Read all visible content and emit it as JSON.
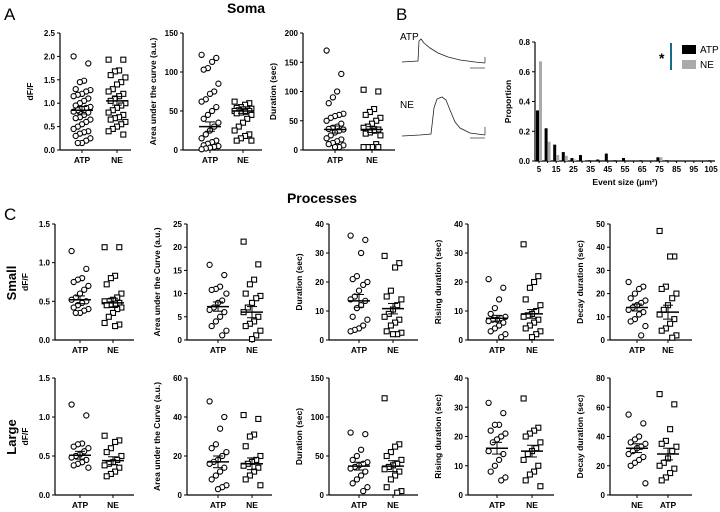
{
  "titles": {
    "soma": "Soma",
    "processes": "Processes"
  },
  "panel_letters": {
    "a": "A",
    "b": "B",
    "c": "C"
  },
  "row_labels": {
    "small": "Small",
    "large": "Large"
  },
  "traces": {
    "atp_label": "ATP",
    "ne_label": "NE"
  },
  "chart_data": [
    {
      "id": "soma-dff",
      "type": "scatter",
      "ylabel": "dF/F",
      "ylim": [
        0,
        2.5
      ],
      "yticks": [
        0,
        0.5,
        1,
        1.5,
        2,
        2.5
      ],
      "ytick_labels": [
        "0.0",
        "0.5",
        "1.0",
        "1.5",
        "2.0",
        "2.5"
      ],
      "groups": [
        {
          "name": "ATP",
          "marker": "circle",
          "mean": 0.85,
          "sem": 0.08,
          "values": [
            2.0,
            1.85,
            1.48,
            1.45,
            1.3,
            1.28,
            1.25,
            1.2,
            1.18,
            1.15,
            1.1,
            1.05,
            1.0,
            0.95,
            0.92,
            0.9,
            0.88,
            0.85,
            0.82,
            0.8,
            0.75,
            0.7,
            0.68,
            0.65,
            0.6,
            0.55,
            0.5,
            0.45,
            0.4,
            0.38,
            0.35,
            0.3,
            0.25,
            0.2,
            0.15,
            0.15
          ]
        },
        {
          "name": "NE",
          "marker": "square",
          "mean": 1.05,
          "sem": 0.09,
          "values": [
            1.93,
            1.93,
            1.7,
            1.68,
            1.6,
            1.55,
            1.45,
            1.4,
            1.3,
            1.25,
            1.2,
            1.15,
            1.1,
            1.05,
            1.0,
            0.95,
            0.9,
            0.85,
            0.8,
            0.75,
            0.7,
            0.68,
            0.65,
            0.6,
            0.55,
            0.5,
            0.45,
            0.4,
            0.33
          ]
        }
      ]
    },
    {
      "id": "soma-auc",
      "type": "scatter",
      "ylabel": "Area under the curve (a.u.)",
      "ylim": [
        0,
        150
      ],
      "yticks": [
        0,
        50,
        100,
        150
      ],
      "ytick_labels": [
        "0",
        "50",
        "100",
        "150"
      ],
      "groups": [
        {
          "name": "ATP",
          "marker": "circle",
          "mean": 30,
          "sem": 6,
          "values": [
            122,
            118,
            113,
            105,
            103,
            85,
            75,
            72,
            65,
            62,
            55,
            50,
            45,
            40,
            35,
            30,
            25,
            20,
            15,
            12,
            10,
            8,
            6,
            5,
            4,
            3,
            2,
            1
          ]
        },
        {
          "name": "NE",
          "marker": "square",
          "mean": 50,
          "sem": 3,
          "values": [
            62,
            60,
            58,
            55,
            54,
            53,
            52,
            52,
            51,
            50,
            50,
            49,
            48,
            47,
            45,
            40,
            35,
            30,
            25,
            20,
            18,
            15,
            12,
            12
          ]
        }
      ]
    },
    {
      "id": "soma-duration",
      "type": "scatter",
      "ylabel": "Duration (sec)",
      "ylim": [
        0,
        200
      ],
      "yticks": [
        0,
        50,
        100,
        150,
        200
      ],
      "ytick_labels": [
        "0",
        "50",
        "100",
        "150",
        "200"
      ],
      "groups": [
        {
          "name": "ATP",
          "marker": "circle",
          "mean": 35,
          "sem": 6,
          "values": [
            170,
            130,
            100,
            90,
            80,
            62,
            60,
            58,
            55,
            50,
            45,
            40,
            38,
            36,
            35,
            33,
            30,
            25,
            20,
            18,
            15,
            12,
            10,
            8,
            5,
            5
          ]
        },
        {
          "name": "NE",
          "marker": "square",
          "mean": 35,
          "sem": 5,
          "values": [
            103,
            100,
            70,
            65,
            60,
            55,
            50,
            45,
            40,
            38,
            35,
            33,
            30,
            28,
            25,
            10,
            5,
            5,
            5,
            5
          ]
        }
      ]
    },
    {
      "id": "small-dff",
      "type": "scatter",
      "ylabel": "dF/F",
      "ylim": [
        0,
        1.5
      ],
      "yticks": [
        0,
        0.5,
        1,
        1.5
      ],
      "ytick_labels": [
        "0.0",
        "0.5",
        "1.0",
        "1.5"
      ],
      "groups": [
        {
          "name": "ATP",
          "marker": "circle",
          "mean": 0.52,
          "sem": 0.05,
          "values": [
            1.15,
            0.92,
            0.8,
            0.78,
            0.75,
            0.7,
            0.65,
            0.6,
            0.55,
            0.52,
            0.5,
            0.48,
            0.45,
            0.42,
            0.4,
            0.38,
            0.35,
            0.35
          ]
        },
        {
          "name": "NE",
          "marker": "square",
          "mean": 0.48,
          "sem": 0.06,
          "values": [
            1.2,
            1.2,
            0.83,
            0.8,
            0.72,
            0.6,
            0.55,
            0.52,
            0.5,
            0.5,
            0.48,
            0.47,
            0.46,
            0.45,
            0.42,
            0.4,
            0.35,
            0.3,
            0.22,
            0.2,
            0.18
          ]
        }
      ]
    },
    {
      "id": "small-auc",
      "type": "scatter",
      "ylabel": "Area under the Curve (a.u.)",
      "ylim": [
        0,
        25
      ],
      "yticks": [
        0,
        5,
        10,
        15,
        20,
        25
      ],
      "ytick_labels": [
        "0",
        "5",
        "10",
        "15",
        "20",
        "25"
      ],
      "groups": [
        {
          "name": "ATP",
          "marker": "circle",
          "mean": 7.2,
          "sem": 1.0,
          "values": [
            16.2,
            14,
            11.5,
            11,
            10.8,
            10,
            8.5,
            8,
            7,
            6.5,
            6,
            5,
            4,
            3,
            2,
            1
          ]
        },
        {
          "name": "NE",
          "marker": "square",
          "mean": 6,
          "sem": 1.2,
          "values": [
            21.2,
            16.3,
            13,
            12,
            10,
            9.5,
            9,
            8,
            7,
            6,
            5,
            4,
            3.5,
            3,
            2,
            1,
            0.2
          ]
        }
      ]
    },
    {
      "id": "small-duration",
      "type": "scatter",
      "ylabel": "Duration (sec)",
      "ylim": [
        0,
        40
      ],
      "yticks": [
        0,
        10,
        20,
        30,
        40
      ],
      "ytick_labels": [
        "0",
        "10",
        "20",
        "30",
        "40"
      ],
      "groups": [
        {
          "name": "ATP",
          "marker": "circle",
          "mean": 13.5,
          "sem": 2.2,
          "values": [
            36,
            34.5,
            30,
            22,
            21,
            20,
            19,
            17,
            15,
            14,
            13.5,
            12,
            11,
            8,
            7,
            5,
            4,
            3.5,
            3
          ]
        },
        {
          "name": "NE",
          "marker": "square",
          "mean": 10.8,
          "sem": 1.8,
          "values": [
            29,
            26.5,
            25,
            17,
            15,
            14,
            12,
            10.5,
            9,
            8,
            7,
            6,
            5,
            3,
            2.5,
            2,
            2
          ]
        }
      ]
    },
    {
      "id": "small-rising",
      "type": "scatter",
      "ylabel": "Rising duration (sec)",
      "ylim": [
        0,
        40
      ],
      "yticks": [
        0,
        10,
        20,
        30,
        40
      ],
      "ytick_labels": [
        "0",
        "10",
        "20",
        "30",
        "40"
      ],
      "groups": [
        {
          "name": "ATP",
          "marker": "circle",
          "mean": 7.5,
          "sem": 1.0,
          "values": [
            21,
            18,
            14,
            11,
            9,
            8,
            7.5,
            7,
            7,
            6.5,
            6,
            5,
            4,
            3,
            2,
            1
          ]
        },
        {
          "name": "NE",
          "marker": "square",
          "mean": 9,
          "sem": 1.5,
          "values": [
            33,
            22,
            20,
            18,
            14,
            12,
            10,
            9,
            8.5,
            8,
            7,
            6,
            5,
            4,
            3,
            2,
            1
          ]
        }
      ]
    },
    {
      "id": "small-decay",
      "type": "scatter",
      "ylabel": "Decay duration (sec)",
      "ylim": [
        0,
        50
      ],
      "yticks": [
        0,
        10,
        20,
        30,
        40,
        50
      ],
      "ytick_labels": [
        "0",
        "10",
        "20",
        "30",
        "40",
        "50"
      ],
      "groups": [
        {
          "name": "ATP",
          "marker": "circle",
          "mean": 14,
          "sem": 1.5,
          "values": [
            25,
            23,
            22,
            20,
            18,
            17,
            16,
            15,
            14,
            13,
            12,
            11,
            9,
            8,
            6,
            2
          ]
        },
        {
          "name": "NE",
          "marker": "square",
          "mean": 12,
          "sem": 3,
          "values": [
            47,
            36,
            36,
            23,
            22,
            20,
            18,
            15,
            13,
            11,
            9,
            7,
            5,
            4,
            2,
            1
          ]
        }
      ]
    },
    {
      "id": "large-dff",
      "type": "scatter",
      "ylabel": "dF/F",
      "ylim": [
        0,
        1.5
      ],
      "yticks": [
        0,
        0.5,
        1,
        1.5
      ],
      "ytick_labels": [
        "0.0",
        "0.5",
        "1.0",
        "1.5"
      ],
      "groups": [
        {
          "name": "ATP",
          "marker": "circle",
          "mean": 0.51,
          "sem": 0.05,
          "values": [
            1.16,
            1.02,
            0.66,
            0.65,
            0.62,
            0.6,
            0.56,
            0.52,
            0.5,
            0.48,
            0.45,
            0.42,
            0.4,
            0.38,
            0.35
          ]
        },
        {
          "name": "NE",
          "marker": "square",
          "mean": 0.44,
          "sem": 0.05,
          "values": [
            0.76,
            0.7,
            0.68,
            0.6,
            0.55,
            0.5,
            0.45,
            0.42,
            0.4,
            0.38,
            0.35,
            0.3,
            0.27,
            0.24
          ]
        }
      ]
    },
    {
      "id": "large-auc",
      "type": "scatter",
      "ylabel": "Area under the Curve (a.u.)",
      "ylim": [
        0,
        60
      ],
      "yticks": [
        0,
        20,
        40,
        60
      ],
      "ytick_labels": [
        "0",
        "20",
        "40",
        "60"
      ],
      "groups": [
        {
          "name": "ATP",
          "marker": "circle",
          "mean": 17,
          "sem": 3,
          "values": [
            48,
            40,
            34,
            26,
            24,
            22,
            20,
            18,
            17,
            16,
            14,
            12,
            10,
            8,
            5,
            4,
            3
          ]
        },
        {
          "name": "NE",
          "marker": "square",
          "mean": 16,
          "sem": 3,
          "values": [
            41,
            39,
            31,
            30,
            25,
            20,
            18,
            17,
            16,
            15,
            14,
            12,
            10,
            8,
            5
          ]
        }
      ]
    },
    {
      "id": "large-duration",
      "type": "scatter",
      "ylabel": "Duration (sec)",
      "ylim": [
        0,
        150
      ],
      "yticks": [
        0,
        50,
        100,
        150
      ],
      "ytick_labels": [
        "0",
        "50",
        "100",
        "150"
      ],
      "groups": [
        {
          "name": "ATP",
          "marker": "circle",
          "mean": 37,
          "sem": 5,
          "values": [
            80,
            78,
            58,
            50,
            45,
            42,
            40,
            38,
            36,
            34,
            30,
            25,
            20,
            15,
            10,
            5
          ]
        },
        {
          "name": "NE",
          "marker": "square",
          "mean": 37,
          "sem": 7,
          "values": [
            124,
            65,
            62,
            55,
            50,
            45,
            40,
            38,
            36,
            33,
            30,
            25,
            20,
            10,
            5,
            3
          ]
        }
      ]
    },
    {
      "id": "large-rising",
      "type": "scatter",
      "ylabel": "Rising duration (sec)",
      "ylim": [
        0,
        40
      ],
      "yticks": [
        0,
        10,
        20,
        30,
        40
      ],
      "ytick_labels": [
        "0",
        "10",
        "20",
        "30",
        "40"
      ],
      "groups": [
        {
          "name": "ATP",
          "marker": "circle",
          "mean": 16,
          "sem": 2,
          "values": [
            31.5,
            28,
            24,
            24,
            22,
            21,
            20,
            19,
            18,
            15,
            14,
            12,
            10,
            8,
            6,
            5
          ]
        },
        {
          "name": "NE",
          "marker": "square",
          "mean": 15,
          "sem": 2,
          "values": [
            33,
            23,
            22,
            21,
            20,
            18,
            16,
            15,
            14,
            12,
            10,
            8,
            7,
            5,
            3
          ]
        }
      ]
    },
    {
      "id": "large-decay",
      "type": "scatter",
      "ylabel": "Decay duration (sec)",
      "ylim": [
        0,
        80
      ],
      "yticks": [
        0,
        20,
        40,
        60,
        80
      ],
      "ytick_labels": [
        "0",
        "20",
        "40",
        "60",
        "80"
      ],
      "groups": [
        {
          "name": "NE",
          "marker": "circle",
          "mean": 32,
          "sem": 3,
          "values": [
            55,
            49,
            40,
            38,
            36,
            35,
            33,
            32,
            30,
            28,
            26,
            24,
            22,
            20,
            8
          ]
        },
        {
          "name": "ATP",
          "marker": "square",
          "mean": 28,
          "sem": 4,
          "values": [
            69,
            62,
            45,
            37,
            35,
            33,
            30,
            25,
            22,
            20,
            18,
            15,
            12,
            10
          ]
        }
      ]
    },
    {
      "id": "event-size",
      "type": "bar",
      "xlabel": "Event size (μm²)",
      "ylabel": "Proportion",
      "ylim": [
        0,
        0.8
      ],
      "yticks": [
        0,
        0.2,
        0.4,
        0.6,
        0.8
      ],
      "ytick_labels": [
        "0.0",
        "0.2",
        "0.4",
        "0.6",
        "0.8"
      ],
      "categories": [
        5,
        10,
        15,
        20,
        25,
        30,
        35,
        40,
        45,
        50,
        55,
        60,
        65,
        70,
        75,
        80,
        85,
        90,
        95,
        100,
        105
      ],
      "xtick_labels": [
        "5",
        "15",
        "25",
        "35",
        "45",
        "55",
        "65",
        "75",
        "85",
        "95",
        "105"
      ],
      "series": [
        {
          "name": "ATP",
          "color": "#000000",
          "values": [
            0.34,
            0.22,
            0.11,
            0.06,
            0.02,
            0.04,
            0.005,
            0.01,
            0.05,
            0.005,
            0.02,
            0.003,
            0.005,
            0.003,
            0.025,
            0.005,
            0.003,
            0,
            0,
            0,
            0.005
          ]
        },
        {
          "name": "NE",
          "color": "#aaaaaa",
          "values": [
            0.67,
            0.13,
            0.04,
            0.035,
            0.01,
            0.005,
            0,
            0,
            0,
            0,
            0,
            0,
            0,
            0,
            0.025,
            0,
            0,
            0,
            0,
            0,
            0
          ]
        }
      ],
      "significance": "*",
      "significance_color": "#1a6a8a",
      "legend": "top-right"
    }
  ]
}
